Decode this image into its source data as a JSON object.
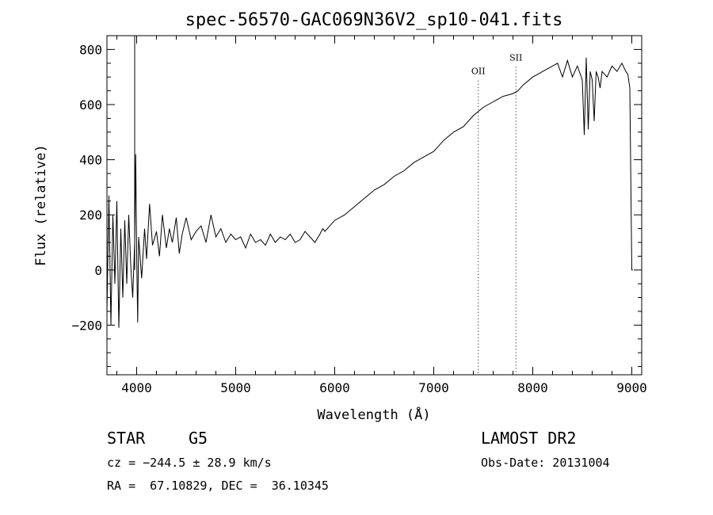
{
  "chart_data": {
    "type": "line",
    "title": "spec-56570-GAC069N36V2_sp10-041.fits",
    "xlabel": "Wavelength (Å)",
    "ylabel": "Flux (relative)",
    "xlim": [
      3700,
      9100
    ],
    "ylim": [
      -380,
      850
    ],
    "xticks": [
      4000,
      5000,
      6000,
      7000,
      8000,
      9000
    ],
    "xtick_labels": [
      "4000",
      "5000",
      "6000",
      "7000",
      "8000",
      "9000"
    ],
    "yticks": [
      -200,
      0,
      200,
      400,
      600,
      800
    ],
    "ytick_labels": [
      "−200",
      "0",
      "200",
      "400",
      "600",
      "800"
    ],
    "grid": false,
    "legend": "none",
    "annotations": [
      {
        "label": "OII",
        "x": 7450,
        "label_y": 710
      },
      {
        "label": "SII",
        "x": 7830,
        "label_y": 760
      }
    ],
    "series": [
      {
        "x": [
          3700,
          3720,
          3740,
          3760,
          3780,
          3800,
          3820,
          3840,
          3860,
          3880,
          3900,
          3920,
          3940,
          3960,
          3980,
          3990,
          4000,
          4010,
          4020,
          4050,
          4080,
          4100,
          4130,
          4160,
          4200,
          4230,
          4260,
          4300,
          4330,
          4360,
          4400,
          4430,
          4460,
          4500,
          4550,
          4600,
          4650,
          4700,
          4750,
          4800,
          4850,
          4900,
          4950,
          5000,
          5050,
          5100,
          5150,
          5200,
          5250,
          5300,
          5350,
          5400,
          5450,
          5500,
          5550,
          5600,
          5650,
          5700,
          5750,
          5800,
          5850,
          5880,
          5900,
          5950,
          6000,
          6100,
          6200,
          6300,
          6400,
          6500,
          6600,
          6700,
          6800,
          6900,
          7000,
          7100,
          7200,
          7300,
          7400,
          7500,
          7600,
          7700,
          7800,
          7850,
          7900,
          8000,
          8100,
          8200,
          8250,
          8300,
          8350,
          8400,
          8450,
          8500,
          8520,
          8540,
          8560,
          8580,
          8600,
          8620,
          8640,
          8660,
          8680,
          8700,
          8750,
          8800,
          8850,
          8900,
          8940,
          8960,
          8980,
          9000,
          9010
        ],
        "y": [
          -150,
          270,
          -200,
          200,
          -50,
          250,
          -210,
          150,
          -100,
          180,
          -50,
          200,
          20,
          -100,
          100,
          420,
          60,
          -190,
          120,
          -30,
          150,
          40,
          240,
          90,
          140,
          50,
          200,
          80,
          150,
          100,
          190,
          60,
          130,
          190,
          110,
          140,
          160,
          100,
          200,
          120,
          150,
          100,
          130,
          110,
          120,
          80,
          130,
          100,
          110,
          90,
          130,
          100,
          120,
          110,
          130,
          100,
          110,
          140,
          120,
          100,
          130,
          150,
          140,
          160,
          180,
          200,
          230,
          260,
          290,
          310,
          340,
          360,
          390,
          410,
          430,
          470,
          500,
          520,
          560,
          590,
          610,
          630,
          640,
          650,
          670,
          700,
          720,
          740,
          750,
          700,
          760,
          700,
          740,
          690,
          490,
          770,
          510,
          720,
          690,
          540,
          720,
          700,
          660,
          720,
          700,
          740,
          720,
          750,
          720,
          710,
          660,
          0,
          0
        ]
      }
    ],
    "footer": {
      "object_class": "STAR",
      "subclass": "G5",
      "survey": "LAMOST DR2",
      "cz": "cz = −244.5 ± 28.9 km/s",
      "obs_date": "Obs-Date: 20131004",
      "coords": "RA =  67.10829, DEC =  36.10345"
    }
  }
}
